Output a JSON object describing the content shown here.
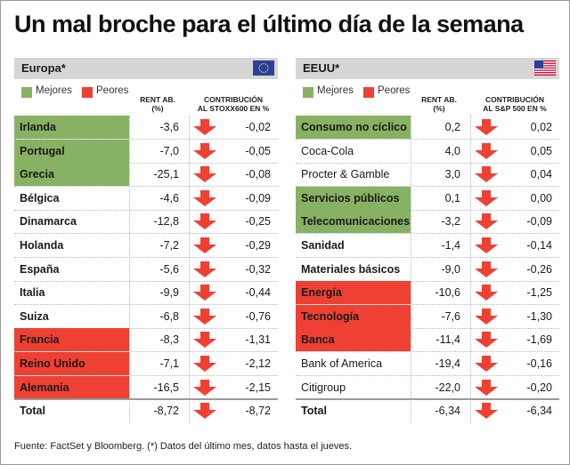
{
  "title": "Un mal broche para el último día de la semana",
  "legend": {
    "mejores": "Mejores",
    "peores": "Peores"
  },
  "colors": {
    "mejor": "#88b263",
    "peor": "#ef4034",
    "arrow": "#ef4034",
    "header_bg": "#d6d6d6"
  },
  "source": "Fuente: FactSet y Bloomberg. (*) Datos del último mes, datos hasta el jueves.",
  "chart_data": [
    {
      "type": "table",
      "panel": "Europa*",
      "flag_icon": "eu-flag-icon",
      "rent_header": [
        "RENT AB.",
        "(%)"
      ],
      "contrib_header": [
        "CONTRIBUCIÓN",
        "AL STOXX600 EN %"
      ],
      "rows": [
        {
          "label": "Irlanda",
          "rent": "-3,6",
          "contrib": "-0,02",
          "status": "mejor",
          "bold": true
        },
        {
          "label": "Portugal",
          "rent": "-7,0",
          "contrib": "-0,05",
          "status": "mejor",
          "bold": true
        },
        {
          "label": "Grecia",
          "rent": "-25,1",
          "contrib": "-0,08",
          "status": "mejor",
          "bold": true
        },
        {
          "label": "Bélgica",
          "rent": "-4,6",
          "contrib": "-0,09",
          "status": "",
          "bold": true
        },
        {
          "label": "Dinamarca",
          "rent": "-12,8",
          "contrib": "-0,25",
          "status": "",
          "bold": true
        },
        {
          "label": "Holanda",
          "rent": "-7,2",
          "contrib": "-0,29",
          "status": "",
          "bold": true
        },
        {
          "label": "España",
          "rent": "-5,6",
          "contrib": "-0,32",
          "status": "",
          "bold": true
        },
        {
          "label": "Italia",
          "rent": "-9,9",
          "contrib": "-0,44",
          "status": "",
          "bold": true
        },
        {
          "label": "Suiza",
          "rent": "-6,8",
          "contrib": "-0,76",
          "status": "",
          "bold": true
        },
        {
          "label": "Francia",
          "rent": "-8,3",
          "contrib": "-1,31",
          "status": "peor",
          "bold": true
        },
        {
          "label": "Reino Unido",
          "rent": "-7,1",
          "contrib": "-2,12",
          "status": "peor",
          "bold": true
        },
        {
          "label": "Alemania",
          "rent": "-16,5",
          "contrib": "-2,15",
          "status": "peor",
          "bold": true
        },
        {
          "label": "Total",
          "rent": "-8,72",
          "contrib": "-8,72",
          "status": "",
          "bold": true,
          "total": true
        }
      ]
    },
    {
      "type": "table",
      "panel": "EEUU*",
      "flag_icon": "us-flag-icon",
      "rent_header": [
        "RENT AB.",
        "(%)"
      ],
      "contrib_header": [
        "CONTRIBUCIÓN",
        "AL S&P 500 EN %"
      ],
      "rows": [
        {
          "label": "Consumo no cíclico",
          "rent": "0,2",
          "contrib": "0,02",
          "status": "mejor",
          "bold": true
        },
        {
          "label": "Coca-Cola",
          "rent": "4,0",
          "contrib": "0,05",
          "status": "",
          "bold": false
        },
        {
          "label": "Procter & Gamble",
          "rent": "3,0",
          "contrib": "0,04",
          "status": "",
          "bold": false
        },
        {
          "label": "Servicios públicos",
          "rent": "0,1",
          "contrib": "0,00",
          "status": "mejor",
          "bold": true
        },
        {
          "label": "Telecomunicaciones",
          "rent": "-3,2",
          "contrib": "-0,09",
          "status": "mejor",
          "bold": true
        },
        {
          "label": "Sanidad",
          "rent": "-1,4",
          "contrib": "-0,14",
          "status": "",
          "bold": true
        },
        {
          "label": "Materiales básicos",
          "rent": "-9,0",
          "contrib": "-0,26",
          "status": "",
          "bold": true
        },
        {
          "label": "Energía",
          "rent": "-10,6",
          "contrib": "-1,25",
          "status": "peor",
          "bold": true
        },
        {
          "label": "Tecnología",
          "rent": "-7,6",
          "contrib": "-1,30",
          "status": "peor",
          "bold": true
        },
        {
          "label": "Banca",
          "rent": "-11,4",
          "contrib": "-1,69",
          "status": "peor",
          "bold": true
        },
        {
          "label": "Bank of America",
          "rent": "-19,4",
          "contrib": "-0,16",
          "status": "",
          "bold": false
        },
        {
          "label": "Citigroup",
          "rent": "-22,0",
          "contrib": "-0,20",
          "status": "",
          "bold": false
        },
        {
          "label": "Total",
          "rent": "-6,34",
          "contrib": "-6,34",
          "status": "",
          "bold": true,
          "total": true
        }
      ]
    }
  ]
}
